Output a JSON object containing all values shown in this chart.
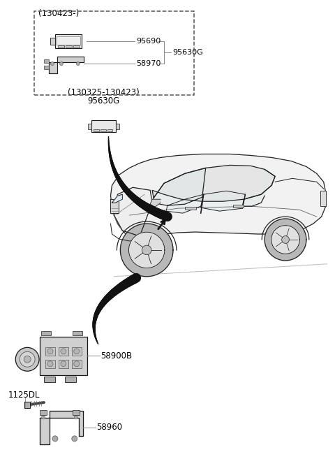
{
  "background_color": "#ffffff",
  "fig_width": 4.8,
  "fig_height": 6.77,
  "dpi": 100,
  "labels": {
    "dashed_box_label": "(130423-)",
    "part_95690": "95690",
    "part_58970": "58970",
    "part_95630G_main": "95630G",
    "part_95630G_label": "(130325-130423)",
    "part_95630G_sub": "95630G",
    "part_58900B": "58900B",
    "part_1125DL": "1125DL",
    "part_58960": "58960"
  },
  "colors": {
    "edge": "#1a1a1a",
    "dashed_box": "#555555",
    "text": "#000000",
    "gray_line": "#888888",
    "arrow": "#111111",
    "light_fill": "#e8e8e8",
    "mid_fill": "#d0d0d0",
    "dark_fill": "#b0b0b0"
  }
}
